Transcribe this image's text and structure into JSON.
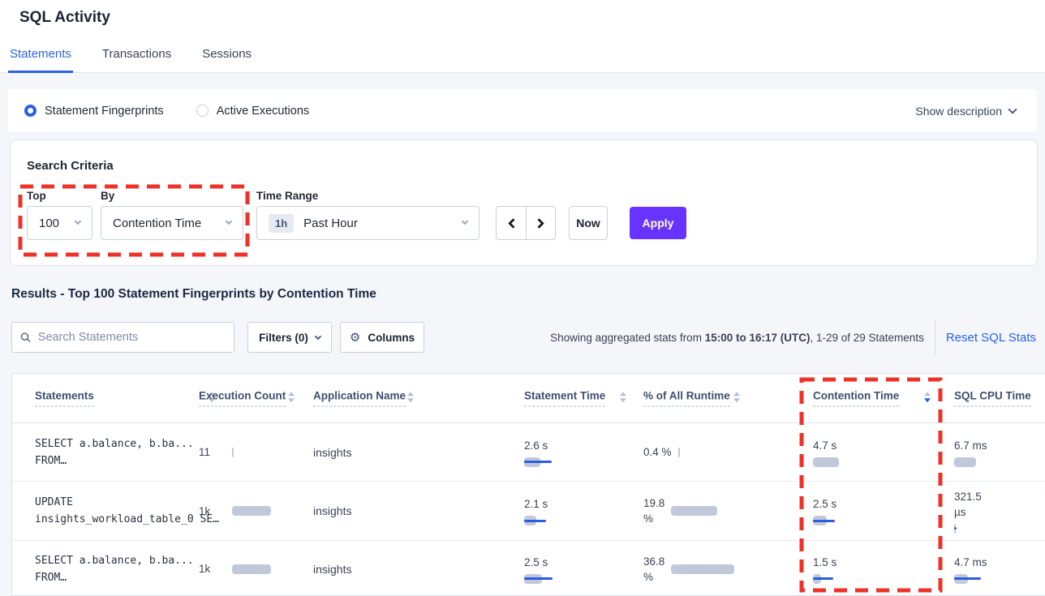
{
  "page": {
    "title": "SQL Activity"
  },
  "tabs": [
    {
      "label": "Statements",
      "active": true
    },
    {
      "label": "Transactions",
      "active": false
    },
    {
      "label": "Sessions",
      "active": false
    }
  ],
  "view_toggle": {
    "options": [
      {
        "label": "Statement Fingerprints",
        "selected": true
      },
      {
        "label": "Active Executions",
        "selected": false
      }
    ],
    "show_description_label": "Show description"
  },
  "search_criteria": {
    "heading": "Search Criteria",
    "top": {
      "label": "Top",
      "value": "100"
    },
    "by": {
      "label": "By",
      "value": "Contention Time"
    },
    "time_range": {
      "label": "Time Range",
      "badge": "1h",
      "value": "Past Hour"
    },
    "now_label": "Now",
    "apply_label": "Apply"
  },
  "results": {
    "heading": "Results - Top 100 Statement Fingerprints by Contention Time",
    "search_placeholder": "Search Statements",
    "filters_label": "Filters (0)",
    "columns_label": "Columns",
    "showing_prefix": "Showing aggregated stats from ",
    "showing_bold": "15:00 to 16:17 (UTC)",
    "showing_suffix": ", 1-29 of 29 Statements",
    "reset_label": "Reset SQL Stats"
  },
  "table": {
    "columns": [
      {
        "label": "Statements"
      },
      {
        "label": "Execution Count"
      },
      {
        "label": "Application Name"
      },
      {
        "label": "Statement Time"
      },
      {
        "label": "% of All Runtime"
      },
      {
        "label": "Contention Time",
        "sorted": "desc"
      },
      {
        "label": "SQL CPU Time"
      }
    ],
    "rows": [
      {
        "statement": "SELECT a.balance, b.ba...\nFROM…",
        "exec": {
          "value": "11",
          "bar": {
            "gray": 2,
            "blue": 0
          }
        },
        "app": "insights",
        "stmt_time": {
          "value": "2.6 s",
          "bar": {
            "gray": 20,
            "blue": 34
          }
        },
        "pct": {
          "value": "0.4 %",
          "bar": {
            "gray": 2,
            "blue": 0
          }
        },
        "contention": {
          "value": "4.7 s",
          "bar": {
            "gray": 32,
            "blue": 0
          }
        },
        "cpu": {
          "value": "6.7 ms",
          "bar": {
            "gray": 27,
            "blue": 0
          }
        }
      },
      {
        "statement": "UPDATE\ninsights_workload_table_0 SE…",
        "exec": {
          "value": "1k",
          "bar": {
            "gray": 48,
            "blue": 0
          }
        },
        "app": "insights",
        "stmt_time": {
          "value": "2.1 s",
          "bar": {
            "gray": 15,
            "blue": 27
          }
        },
        "pct": {
          "value": "19.8\n%",
          "bar": {
            "gray": 57,
            "blue": 0
          }
        },
        "contention": {
          "value": "2.5 s",
          "bar": {
            "gray": 17,
            "blue": 27
          }
        },
        "cpu": {
          "value": "321.5\nµs",
          "bar": {
            "gray": 2,
            "blue": 3
          }
        }
      },
      {
        "statement": "SELECT a.balance, b.ba...\nFROM…",
        "exec": {
          "value": "1k",
          "bar": {
            "gray": 48,
            "blue": 0
          }
        },
        "app": "insights",
        "stmt_time": {
          "value": "2.5 s",
          "bar": {
            "gray": 22,
            "blue": 35
          }
        },
        "pct": {
          "value": "36.8\n%",
          "bar": {
            "gray": 78,
            "blue": 0
          }
        },
        "contention": {
          "value": "1.5 s",
          "bar": {
            "gray": 10,
            "blue": 25
          }
        },
        "cpu": {
          "value": "4.7 ms",
          "bar": {
            "gray": 17,
            "blue": 33
          }
        }
      }
    ]
  },
  "colors": {
    "accent_blue": "#2b63e8",
    "apply_purple": "#6933ff",
    "bar_gray": "#c1c8da",
    "bar_blue": "#2b5ce2",
    "annotation_red": "#f03127"
  },
  "icons": {
    "search": "search-icon",
    "gear": "gear-icon",
    "chevron_down": "chevron-down-icon",
    "chevron_left": "chevron-left-icon",
    "chevron_right": "chevron-right-icon",
    "sort": "sort-arrows-icon"
  }
}
